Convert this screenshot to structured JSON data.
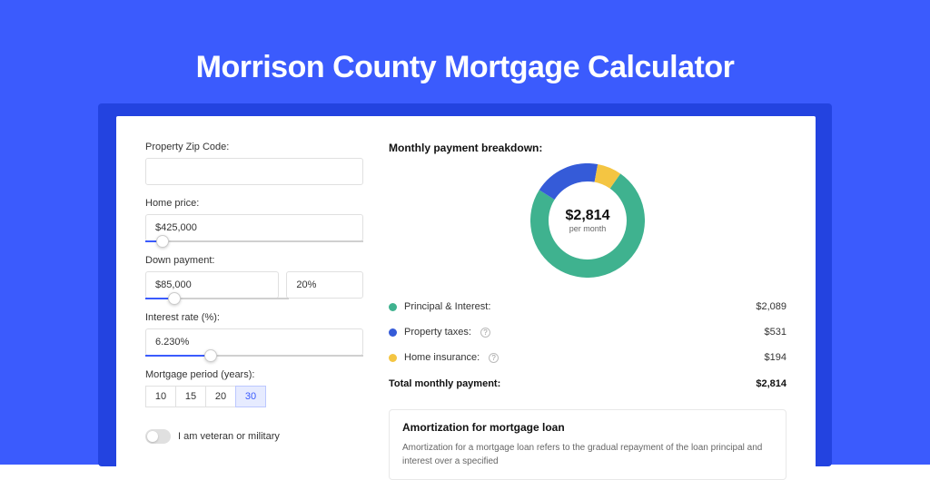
{
  "page_title": "Morrison County Mortgage Calculator",
  "colors": {
    "hero_bg": "#3b5bfd",
    "shadow_bg": "#2343e0",
    "accent": "#3b5bfd",
    "principal": "#3fb28f",
    "taxes": "#355bd8",
    "insurance": "#f4c542"
  },
  "form": {
    "zip": {
      "label": "Property Zip Code:",
      "value": ""
    },
    "home_price": {
      "label": "Home price:",
      "value": "$425,000",
      "slider_pct": 8
    },
    "down_payment": {
      "label": "Down payment:",
      "amount": "$85,000",
      "percent": "20%",
      "slider_pct": 20
    },
    "interest": {
      "label": "Interest rate (%):",
      "value": "6.230%",
      "slider_pct": 30
    },
    "period": {
      "label": "Mortgage period (years):",
      "options": [
        "10",
        "15",
        "20",
        "30"
      ],
      "selected": "30"
    },
    "veteran": {
      "label": "I am veteran or military",
      "on": false
    }
  },
  "breakdown": {
    "title": "Monthly payment breakdown:",
    "total_value": "$2,814",
    "total_sub": "per month",
    "items": [
      {
        "key": "principal",
        "label": "Principal & Interest:",
        "amount": "$2,089",
        "value": 2089,
        "color": "#3fb28f",
        "info": false
      },
      {
        "key": "taxes",
        "label": "Property taxes:",
        "amount": "$531",
        "value": 531,
        "color": "#355bd8",
        "info": true
      },
      {
        "key": "insurance",
        "label": "Home insurance:",
        "amount": "$194",
        "value": 194,
        "color": "#f4c542",
        "info": true
      }
    ],
    "total_label": "Total monthly payment:",
    "total_amount": "$2,814",
    "donut": {
      "size": 126,
      "stroke": 20,
      "start_angle_deg": -55
    }
  },
  "amortization": {
    "title": "Amortization for mortgage loan",
    "body": "Amortization for a mortgage loan refers to the gradual repayment of the loan principal and interest over a specified"
  }
}
